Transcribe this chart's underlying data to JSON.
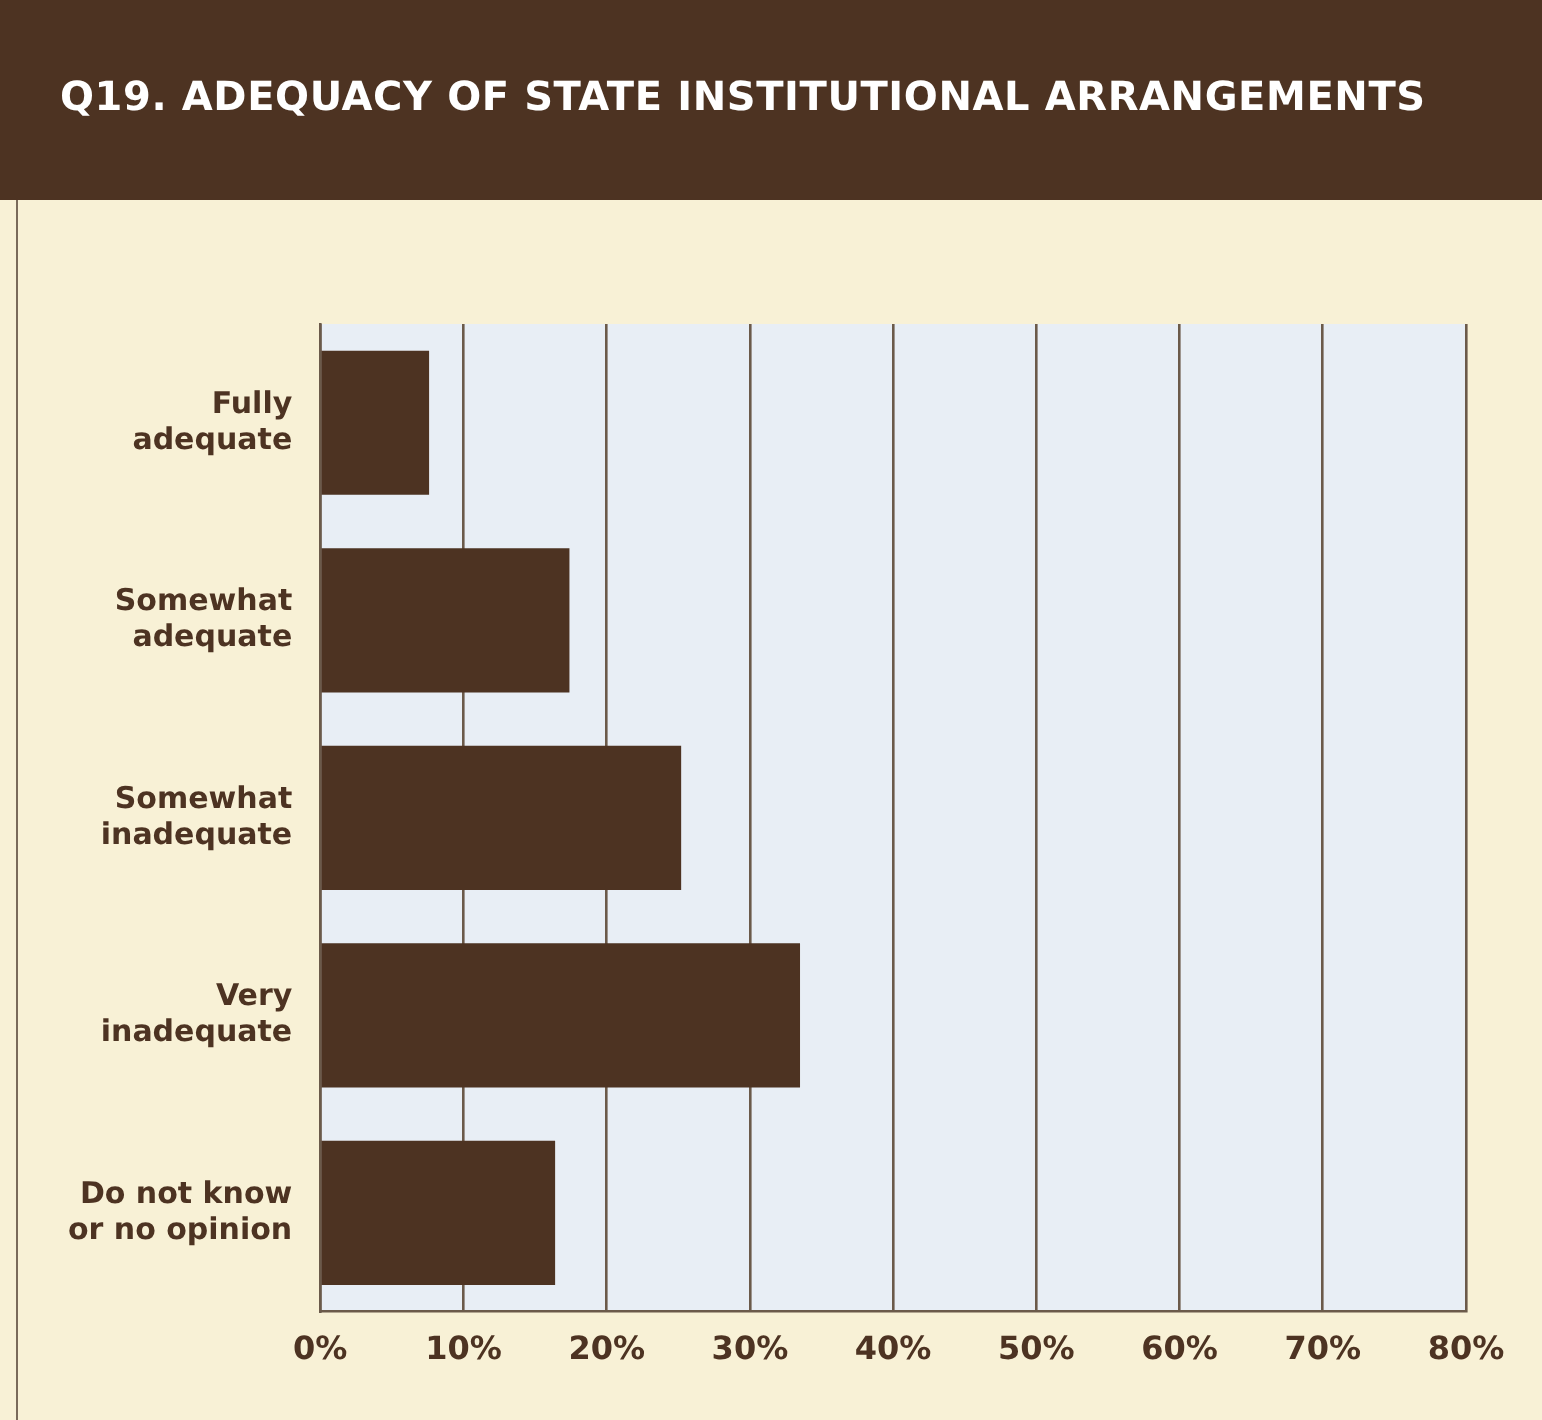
{
  "chart_data": {
    "type": "bar",
    "orientation": "horizontal",
    "title": "Q19. ADEQUACY OF STATE INSTITUTIONAL ARRANGEMENTS",
    "categories": [
      "Fully adequate",
      "Somewhat adequate",
      "Somewhat inadequate",
      "Very inadequate",
      "Do not know or no opinion"
    ],
    "values": [
      7.6,
      17.4,
      25.2,
      33.5,
      16.4
    ],
    "color": "#4d3322",
    "xlim": [
      0,
      80
    ],
    "xticks": [
      {
        "value": 0,
        "label": "0%"
      },
      {
        "value": 10,
        "label": "10%"
      },
      {
        "value": 20,
        "label": "20%"
      },
      {
        "value": 30,
        "label": "30%"
      },
      {
        "value": 40,
        "label": "40%"
      },
      {
        "value": 50,
        "label": "50%"
      },
      {
        "value": 60,
        "label": "60%"
      },
      {
        "value": 70,
        "label": "70%"
      },
      {
        "value": 80,
        "label": "80%"
      }
    ],
    "grid": "x",
    "legend": false
  }
}
